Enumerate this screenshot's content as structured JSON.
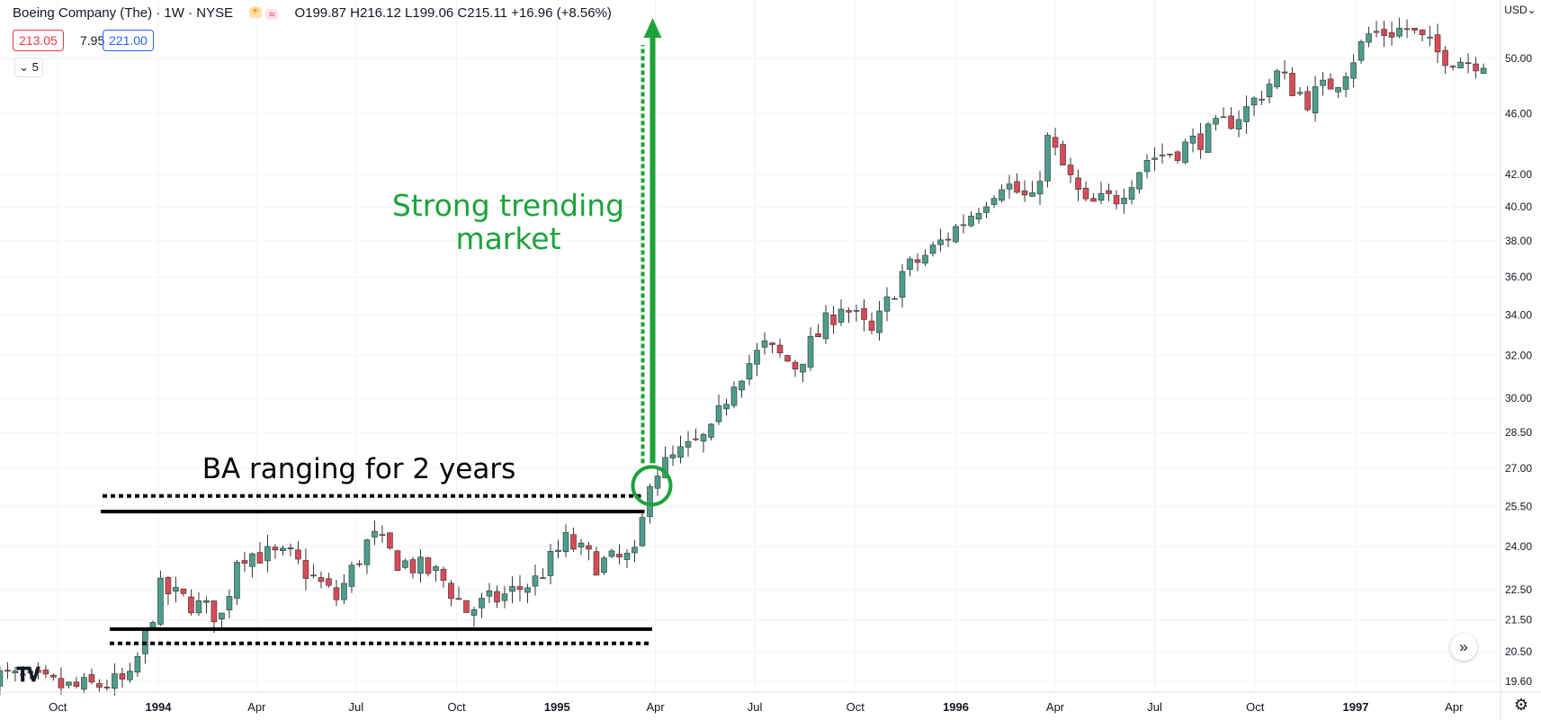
{
  "header": {
    "title": "Boeing Company (The) · 1W · NYSE",
    "ohlc": "O199.87  H216.12  L199.06  C215.11  +16.96 (+8.56%)",
    "bid": "213.05",
    "spread": "7.95",
    "ask": "221.00",
    "indicator_count": "5",
    "currency": "USD"
  },
  "annotations": {
    "trend_label_line1": "Strong trending",
    "trend_label_line2": "market",
    "range_label": "BA ranging for 2 years"
  },
  "colors": {
    "up": "#26a69a",
    "up_body": "#4c9e8b",
    "down": "#ef5350",
    "down_body": "#d84b56",
    "annotation_green": "#1ca33a",
    "annotation_black": "#000000"
  },
  "chart_data": {
    "type": "candlestick",
    "scale": "log",
    "ylim": [
      19.2,
      52.5
    ],
    "y_ticks": [
      "19.60",
      "20.50",
      "21.50",
      "22.50",
      "24.00",
      "25.50",
      "27.00",
      "28.50",
      "30.00",
      "32.00",
      "34.00",
      "36.00",
      "38.00",
      "40.00",
      "42.00",
      "46.00",
      "50.00"
    ],
    "x_ticks": [
      "Oct",
      "1994",
      "Apr",
      "Jul",
      "Oct",
      "1995",
      "Apr",
      "Jul",
      "Oct",
      "1996",
      "Apr",
      "Jul",
      "Oct",
      "1997",
      "Apr"
    ],
    "start": "1993-08-02",
    "end": "1997-04-28",
    "key_prices": [
      {
        "date": "1993-08-02",
        "price": 19.8
      },
      {
        "date": "1993-10-15",
        "price": 19.4
      },
      {
        "date": "1993-12-06",
        "price": 19.6
      },
      {
        "date": "1994-01-03",
        "price": 22.5
      },
      {
        "date": "1994-03-01",
        "price": 21.6
      },
      {
        "date": "1994-03-15",
        "price": 23.8
      },
      {
        "date": "1994-05-02",
        "price": 23.6
      },
      {
        "date": "1994-06-13",
        "price": 22.2
      },
      {
        "date": "1994-07-15",
        "price": 24.4
      },
      {
        "date": "1994-08-08",
        "price": 23.5
      },
      {
        "date": "1994-09-15",
        "price": 23.0
      },
      {
        "date": "1994-10-10",
        "price": 21.8
      },
      {
        "date": "1994-11-14",
        "price": 22.3
      },
      {
        "date": "1994-12-12",
        "price": 22.8
      },
      {
        "date": "1995-01-09",
        "price": 24.2
      },
      {
        "date": "1995-02-06",
        "price": 23.4
      },
      {
        "date": "1995-03-13",
        "price": 23.6
      },
      {
        "date": "1995-03-20",
        "price": 24.9
      },
      {
        "date": "1995-03-27",
        "price": 26.7
      },
      {
        "date": "1995-04-24",
        "price": 27.6
      },
      {
        "date": "1995-05-22",
        "price": 28.4
      },
      {
        "date": "1995-06-12",
        "price": 30.9
      },
      {
        "date": "1995-07-10",
        "price": 32.4
      },
      {
        "date": "1995-08-07",
        "price": 31.5
      },
      {
        "date": "1995-09-18",
        "price": 34.6
      },
      {
        "date": "1995-10-16",
        "price": 33.0
      },
      {
        "date": "1995-11-13",
        "price": 36.2
      },
      {
        "date": "1995-12-11",
        "price": 37.5
      },
      {
        "date": "1996-01-15",
        "price": 39.6
      },
      {
        "date": "1996-02-12",
        "price": 41.6
      },
      {
        "date": "1996-03-11",
        "price": 40.2
      },
      {
        "date": "1996-03-25",
        "price": 44.2
      },
      {
        "date": "1996-04-29",
        "price": 40.0
      },
      {
        "date": "1996-05-27",
        "price": 40.6
      },
      {
        "date": "1996-06-24",
        "price": 43.0
      },
      {
        "date": "1996-07-22",
        "price": 43.6
      },
      {
        "date": "1996-08-19",
        "price": 44.6
      },
      {
        "date": "1996-09-23",
        "price": 46.3
      },
      {
        "date": "1996-10-21",
        "price": 48.8
      },
      {
        "date": "1996-11-18",
        "price": 47.0
      },
      {
        "date": "1996-12-16",
        "price": 48.5
      },
      {
        "date": "1997-01-13",
        "price": 51.8
      },
      {
        "date": "1997-02-17",
        "price": 52.3
      },
      {
        "date": "1997-03-17",
        "price": 50.4
      },
      {
        "date": "1997-04-14",
        "price": 49.8
      },
      {
        "date": "1997-04-28",
        "price": 49.9
      }
    ]
  }
}
